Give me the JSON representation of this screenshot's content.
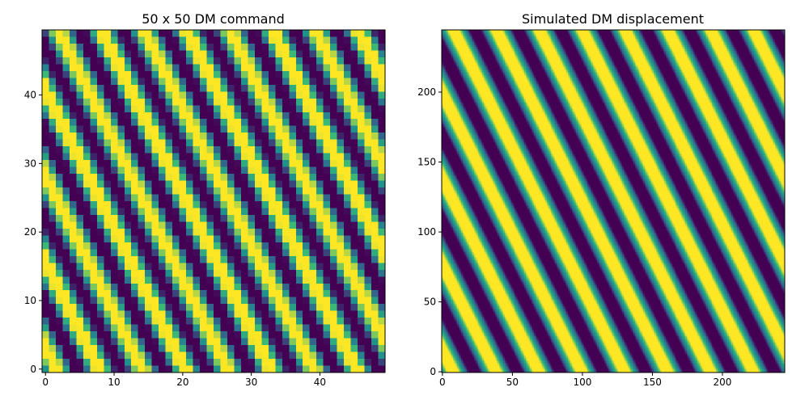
{
  "chart_data": [
    {
      "type": "heatmap",
      "title": "50 x 50 DM command",
      "xlabel": "",
      "ylabel": "",
      "grid_size": [
        50,
        50
      ],
      "origin": "lower",
      "xlim": [
        -0.5,
        49.5
      ],
      "ylim": [
        -0.5,
        49.5
      ],
      "xticks": [
        0,
        10,
        20,
        30,
        40
      ],
      "yticks": [
        0,
        10,
        20,
        30,
        40
      ],
      "colormap": "viridis",
      "pattern": "sinusoid",
      "stripe_orientation": "diagonal, descending left to right",
      "stripes_across_x": 8,
      "stripes_across_y": 4,
      "value_range": [
        -1,
        1
      ],
      "saturated": true
    },
    {
      "type": "heatmap",
      "title": "Simulated DM displacement",
      "xlabel": "",
      "ylabel": "",
      "grid_size": [
        245,
        245
      ],
      "origin": "lower",
      "xlim": [
        -0.5,
        244.5
      ],
      "ylim": [
        -0.5,
        244.5
      ],
      "xticks": [
        0,
        50,
        100,
        150,
        200
      ],
      "yticks": [
        0,
        50,
        100,
        150,
        200
      ],
      "colormap": "viridis",
      "pattern": "sinusoid",
      "stripe_orientation": "diagonal, descending left to right",
      "stripes_across_x": 8,
      "stripes_across_y": 4,
      "value_range": [
        -1,
        1
      ],
      "saturated": true
    }
  ],
  "colors": {
    "viridis_stops": [
      "#440154",
      "#31688e",
      "#21918c",
      "#35b779",
      "#fde725"
    ],
    "axes": "#000000",
    "background": "#ffffff"
  }
}
